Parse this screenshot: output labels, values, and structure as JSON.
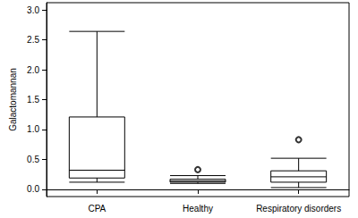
{
  "chart_data": {
    "type": "boxplot",
    "y_label": "Galactomannan",
    "categories": [
      "CPA",
      "Healthy",
      "Respiratory disorders"
    ],
    "boxes": [
      [
        0.12,
        0.19,
        0.32,
        1.21,
        2.64
      ],
      [
        0.1,
        0.12,
        0.14,
        0.17,
        0.23
      ],
      [
        0.03,
        0.12,
        0.21,
        0.31,
        0.52
      ]
    ],
    "outliers": [
      [],
      [
        0.33
      ],
      [
        0.83
      ]
    ],
    "color": "#000000",
    "ylim": [
      -0.12,
      3.12
    ],
    "yticks": [
      {
        "value": 0,
        "label": "0.0"
      },
      0.5,
      {
        "value": 1,
        "label": "1.0"
      },
      1.5,
      {
        "value": 2,
        "label": "2.0"
      },
      2.5,
      {
        "value": 3,
        "label": "3.0"
      }
    ],
    "grid": false
  }
}
